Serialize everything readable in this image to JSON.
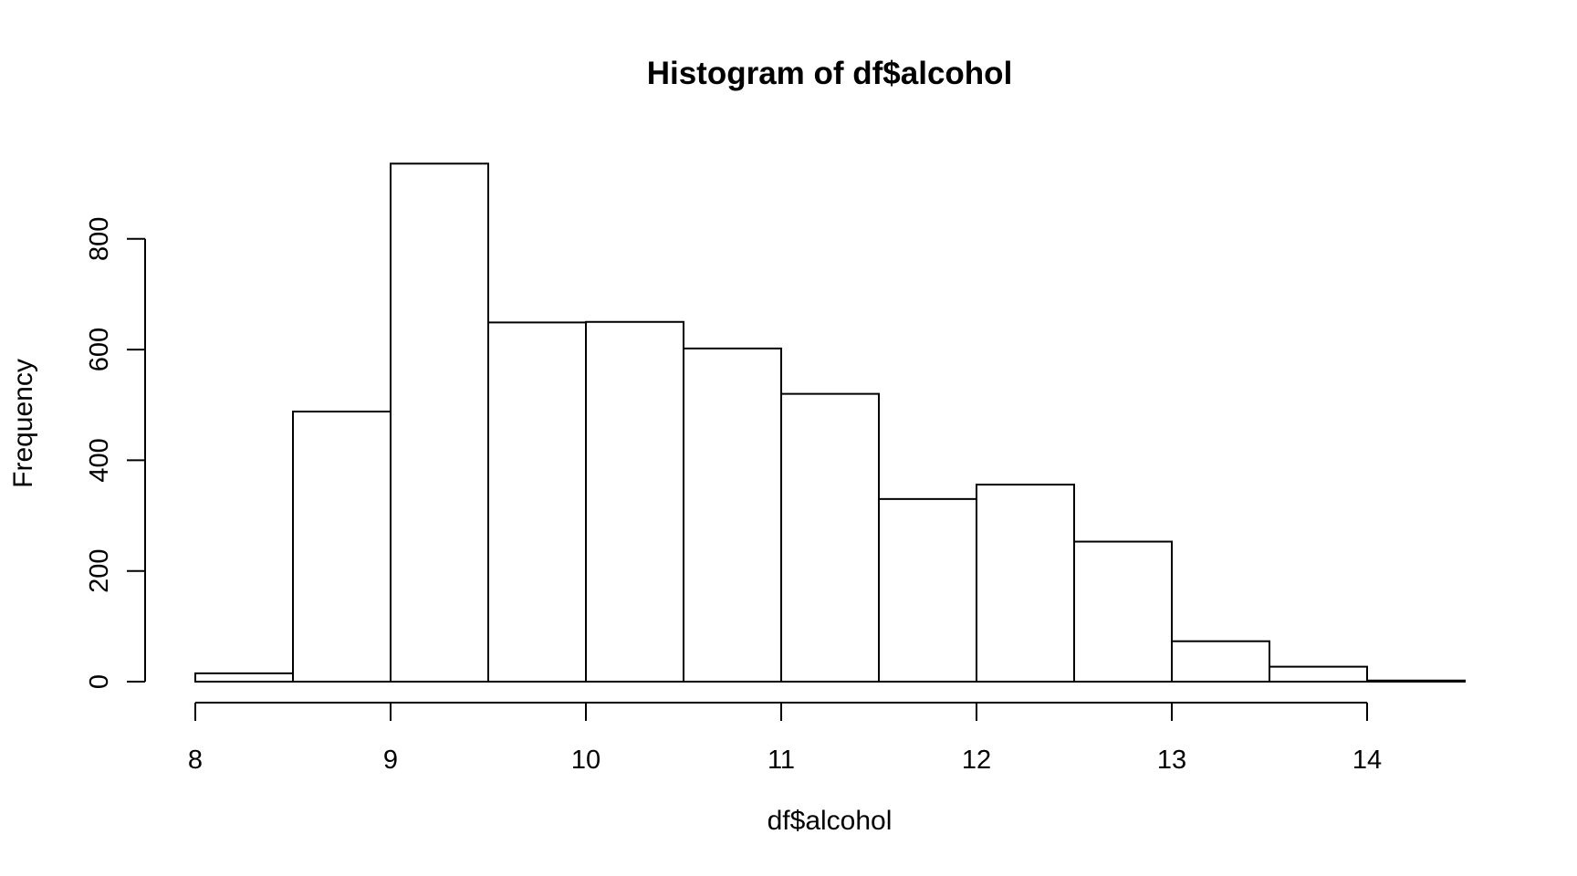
{
  "chart_data": {
    "type": "bar",
    "title": "Histogram of df$alcohol",
    "xlabel": "df$alcohol",
    "ylabel": "Frequency",
    "bins": [
      {
        "start": 8.0,
        "end": 8.5,
        "count": 15
      },
      {
        "start": 8.5,
        "end": 9.0,
        "count": 488
      },
      {
        "start": 9.0,
        "end": 9.5,
        "count": 936
      },
      {
        "start": 9.5,
        "end": 10.0,
        "count": 649
      },
      {
        "start": 10.0,
        "end": 10.5,
        "count": 650
      },
      {
        "start": 10.5,
        "end": 11.0,
        "count": 602
      },
      {
        "start": 11.0,
        "end": 11.5,
        "count": 520
      },
      {
        "start": 11.5,
        "end": 12.0,
        "count": 330
      },
      {
        "start": 12.0,
        "end": 12.5,
        "count": 356
      },
      {
        "start": 12.5,
        "end": 13.0,
        "count": 253
      },
      {
        "start": 13.0,
        "end": 13.5,
        "count": 73
      },
      {
        "start": 13.5,
        "end": 14.0,
        "count": 27
      },
      {
        "start": 14.0,
        "end": 14.5,
        "count": 2
      }
    ],
    "x_ticks": [
      8,
      9,
      10,
      11,
      12,
      13,
      14
    ],
    "y_ticks": [
      0,
      200,
      400,
      600,
      800
    ],
    "xlim": [
      8,
      14.5
    ],
    "ylim": [
      0,
      936
    ],
    "grid": false,
    "bar_fill": "#ffffff",
    "bar_stroke": "#000000"
  }
}
